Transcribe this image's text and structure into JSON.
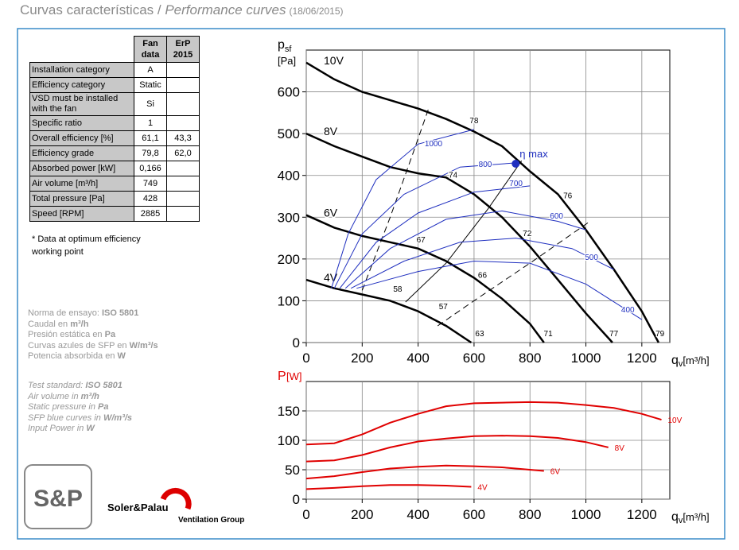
{
  "header": {
    "title": "Curvas características / ",
    "title_italic": "Performance curves",
    "date": "(18/06/2015)"
  },
  "table": {
    "columns": [
      "Fan data",
      "ErP 2015"
    ],
    "rows": [
      {
        "label": "Installation category",
        "fan": "A"
      },
      {
        "label": "Efficiency category",
        "fan": "Static"
      },
      {
        "label": "VSD must be installed with the fan",
        "fan": "Si"
      },
      {
        "label": "Specific ratio",
        "fan": "1"
      },
      {
        "label": "Overall efficiency [%]",
        "fan": "61,1",
        "erp": "43,3"
      },
      {
        "label": "Efficiency grade",
        "fan": "79,8",
        "erp": "62,0"
      },
      {
        "label": "Absorbed power [kW]",
        "fan": "0,166"
      },
      {
        "label": "Air volume [m³/h]",
        "fan": "749"
      },
      {
        "label": "Total pressure [Pa]",
        "fan": "428"
      },
      {
        "label": "Speed [RPM]",
        "fan": "2885"
      }
    ],
    "note": "* Data at optimum efficiency working point"
  },
  "notes_es": [
    [
      "Norma de ensayo: ",
      "ISO 5801"
    ],
    [
      "Caudal en ",
      "m³/h"
    ],
    [
      "Presión estática en ",
      "Pa"
    ],
    [
      "Curvas azules de SFP en ",
      "W/m³/s"
    ],
    [
      "Potencia absorbida en ",
      "W"
    ]
  ],
  "notes_en": [
    [
      "Test standard: ",
      "ISO 5801"
    ],
    [
      "Air volume in ",
      "m³/h"
    ],
    [
      "Static pressure in ",
      "Pa"
    ],
    [
      "SFP blue curves in ",
      "W/m³/s"
    ],
    [
      "Input Power in ",
      "W"
    ]
  ],
  "logo": {
    "mark": "S&P",
    "brand": "Soler&Palau",
    "group": "Ventilation Group"
  },
  "chart_data": [
    {
      "type": "line",
      "ylabel": "p",
      "ylabel_sub": "sf",
      "yunit": "[Pa]",
      "xlabel": "q",
      "xlabel_sub": "v",
      "xunit": "[m³/h]",
      "xlim": [
        0,
        1300
      ],
      "ylim": [
        0,
        700
      ],
      "xticks": [
        0,
        200,
        400,
        600,
        800,
        1000,
        1200
      ],
      "yticks": [
        0,
        100,
        200,
        300,
        400,
        500,
        600
      ],
      "grid": true,
      "series_label": "start",
      "series": [
        {
          "name": "10V",
          "color": "#000000",
          "width": 2.5,
          "x": [
            0,
            100,
            200,
            300,
            400,
            500,
            600,
            700,
            800,
            900,
            1000,
            1100,
            1200,
            1260
          ],
          "values": [
            670,
            630,
            600,
            580,
            560,
            535,
            505,
            470,
            410,
            355,
            270,
            175,
            75,
            0
          ]
        },
        {
          "name": "8V",
          "color": "#000000",
          "width": 2.5,
          "x": [
            0,
            100,
            200,
            300,
            400,
            500,
            600,
            700,
            800,
            900,
            1000,
            1095
          ],
          "values": [
            500,
            470,
            445,
            420,
            405,
            395,
            355,
            300,
            230,
            150,
            70,
            0
          ]
        },
        {
          "name": "6V",
          "color": "#000000",
          "width": 2.5,
          "x": [
            0,
            100,
            200,
            300,
            400,
            500,
            600,
            700,
            800,
            850
          ],
          "values": [
            305,
            275,
            255,
            240,
            225,
            195,
            155,
            105,
            45,
            0
          ]
        },
        {
          "name": "4V",
          "color": "#000000",
          "width": 2.5,
          "x": [
            0,
            100,
            200,
            300,
            400,
            500,
            590
          ],
          "values": [
            150,
            130,
            115,
            100,
            75,
            40,
            0
          ]
        },
        {
          "color": "#000000",
          "width": 1,
          "style": "dashed",
          "x": [
            200,
            300,
            380,
            440
          ],
          "values": [
            125,
            300,
            450,
            565
          ]
        },
        {
          "color": "#000000",
          "width": 1,
          "style": "dashed",
          "x": [
            470,
            600,
            800,
            1010
          ],
          "values": [
            40,
            100,
            190,
            288
          ]
        },
        {
          "color": "#000000",
          "width": 1,
          "x": [
            355,
            500,
            650,
            770
          ],
          "values": [
            97,
            190,
            320,
            435
          ]
        },
        {
          "color": "#1f2fbf",
          "width": 1,
          "x": [
            90,
            150,
            250,
            400,
            600
          ],
          "values": [
            130,
            260,
            390,
            475,
            510
          ]
        },
        {
          "color": "#1f2fbf",
          "width": 1,
          "x": [
            100,
            200,
            350,
            550,
            750
          ],
          "values": [
            130,
            260,
            355,
            420,
            430
          ]
        },
        {
          "color": "#1f2fbf",
          "width": 1,
          "x": [
            120,
            250,
            400,
            600,
            800
          ],
          "values": [
            130,
            240,
            310,
            360,
            375
          ]
        },
        {
          "color": "#1f2fbf",
          "width": 1,
          "x": [
            140,
            300,
            500,
            700,
            900,
            1000
          ],
          "values": [
            130,
            225,
            295,
            315,
            290,
            270
          ]
        },
        {
          "color": "#1f2fbf",
          "width": 1,
          "x": [
            160,
            350,
            550,
            750,
            950,
            1100
          ],
          "values": [
            130,
            195,
            240,
            250,
            225,
            175
          ]
        },
        {
          "color": "#1f2fbf",
          "width": 1,
          "x": [
            180,
            400,
            600,
            800,
            1000,
            1200
          ],
          "values": [
            130,
            170,
            195,
            190,
            140,
            55
          ]
        }
      ],
      "annotations": [
        {
          "text": "1000",
          "x": 455,
          "y": 470,
          "color": "#1f2fbf"
        },
        {
          "text": "800",
          "x": 640,
          "y": 420,
          "color": "#1f2fbf"
        },
        {
          "text": "700",
          "x": 750,
          "y": 375,
          "color": "#1f2fbf"
        },
        {
          "text": "600",
          "x": 895,
          "y": 297,
          "color": "#1f2fbf"
        },
        {
          "text": "500",
          "x": 1020,
          "y": 198,
          "color": "#1f2fbf"
        },
        {
          "text": "400",
          "x": 1150,
          "y": 72,
          "color": "#1f2fbf"
        },
        {
          "text": "78",
          "x": 600,
          "y": 525,
          "color": "#000000"
        },
        {
          "text": "74",
          "x": 525,
          "y": 395,
          "color": "#000000"
        },
        {
          "text": "67",
          "x": 410,
          "y": 240,
          "color": "#000000"
        },
        {
          "text": "58",
          "x": 327,
          "y": 122,
          "color": "#000000"
        },
        {
          "text": "76",
          "x": 935,
          "y": 345,
          "color": "#000000"
        },
        {
          "text": "72",
          "x": 790,
          "y": 255,
          "color": "#000000"
        },
        {
          "text": "66",
          "x": 630,
          "y": 155,
          "color": "#000000"
        },
        {
          "text": "57",
          "x": 490,
          "y": 80,
          "color": "#000000"
        },
        {
          "text": "63",
          "x": 620,
          "y": 15,
          "color": "#000000"
        },
        {
          "text": "71",
          "x": 865,
          "y": 15,
          "color": "#000000"
        },
        {
          "text": "77",
          "x": 1100,
          "y": 15,
          "color": "#000000"
        },
        {
          "text": "79",
          "x": 1265,
          "y": 15,
          "color": "#000000"
        }
      ],
      "points": [
        {
          "label": "η max",
          "x": 749,
          "y": 428,
          "color": "#1f2fbf"
        }
      ]
    },
    {
      "type": "line",
      "ylabel": "P",
      "yunit": "[W]",
      "ylabel_color": "#e00000",
      "xlabel": "q",
      "xlabel_sub": "v",
      "xunit": "[m³/h]",
      "xlim": [
        0,
        1300
      ],
      "ylim": [
        0,
        200
      ],
      "xticks": [
        0,
        200,
        400,
        600,
        800,
        1000,
        1200
      ],
      "yticks": [
        0,
        50,
        100,
        150
      ],
      "grid": true,
      "series_label": "end",
      "series": [
        {
          "name": "10V",
          "color": "#e00000",
          "width": 2,
          "x": [
            0,
            100,
            200,
            300,
            400,
            500,
            600,
            700,
            800,
            900,
            1000,
            1100,
            1200,
            1270
          ],
          "values": [
            93,
            95,
            110,
            130,
            145,
            158,
            163,
            164,
            165,
            164,
            160,
            155,
            145,
            135
          ]
        },
        {
          "name": "8V",
          "color": "#e00000",
          "width": 2,
          "x": [
            0,
            100,
            200,
            300,
            400,
            500,
            600,
            700,
            800,
            900,
            1000,
            1080
          ],
          "values": [
            64,
            66,
            75,
            88,
            98,
            103,
            107,
            108,
            107,
            104,
            97,
            88
          ]
        },
        {
          "name": "6V",
          "color": "#e00000",
          "width": 2,
          "x": [
            0,
            100,
            200,
            300,
            400,
            500,
            600,
            700,
            800,
            850
          ],
          "values": [
            35,
            39,
            46,
            52,
            55,
            57,
            56,
            54,
            50,
            48
          ]
        },
        {
          "name": "4V",
          "color": "#e00000",
          "width": 2,
          "x": [
            0,
            100,
            200,
            300,
            400,
            500,
            590
          ],
          "values": [
            17,
            19,
            22,
            24,
            24,
            23,
            21
          ]
        }
      ]
    }
  ]
}
